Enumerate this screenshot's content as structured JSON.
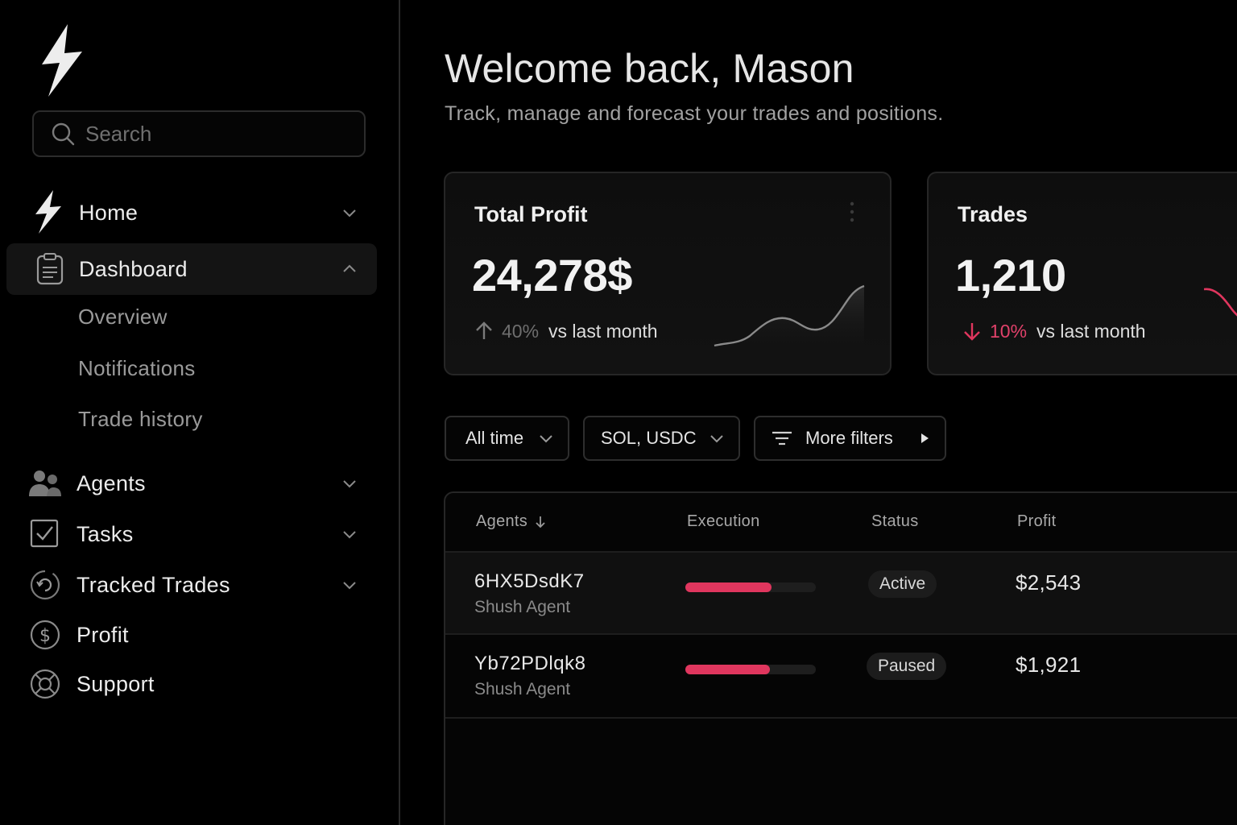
{
  "sidebar": {
    "search": {
      "placeholder": "Search"
    },
    "nav": [
      {
        "label": "Home",
        "icon": "bolt-icon",
        "expanded": false
      },
      {
        "label": "Dashboard",
        "icon": "clipboard-icon",
        "expanded": true,
        "active": true
      },
      {
        "label": "Agents",
        "icon": "users-icon",
        "expanded": false
      },
      {
        "label": "Tasks",
        "icon": "checkbox-icon",
        "expanded": false
      },
      {
        "label": "Tracked Trades",
        "icon": "refresh-circle-icon",
        "expanded": false
      },
      {
        "label": "Profit",
        "icon": "dollar-circle-icon"
      },
      {
        "label": "Support",
        "icon": "lifebuoy-icon"
      }
    ],
    "dashboard_sub": [
      "Overview",
      "Notifications",
      "Trade history"
    ]
  },
  "main": {
    "title": "Welcome back, Mason",
    "subtitle": "Track, manage and forecast your trades and positions.",
    "cards": [
      {
        "title": "Total Profit",
        "value": "24,278$",
        "delta_pct": "40%",
        "delta_dir": "up",
        "delta_text": "vs last month"
      },
      {
        "title": "Trades",
        "value": "1,210",
        "delta_pct": "10%",
        "delta_dir": "down",
        "delta_text": "vs last month"
      }
    ],
    "filters": [
      {
        "label": "All time"
      },
      {
        "label": "SOL, USDC"
      },
      {
        "label": "More filters"
      }
    ],
    "table": {
      "columns": [
        "Agents",
        "Execution",
        "Status",
        "Profit"
      ],
      "rows": [
        {
          "id": "6HX5DsdK7",
          "type": "Shush Agent",
          "execution": 0.66,
          "status": "Active",
          "profit": "$2,543"
        },
        {
          "id": "Yb72PDlqk8",
          "type": "Shush Agent",
          "execution": 0.65,
          "status": "Paused",
          "profit": "$1,921"
        }
      ]
    }
  },
  "colors": {
    "accent": "#e0365e",
    "background": "#000000",
    "card": "#101010",
    "muted_text": "#9a9a9a"
  }
}
